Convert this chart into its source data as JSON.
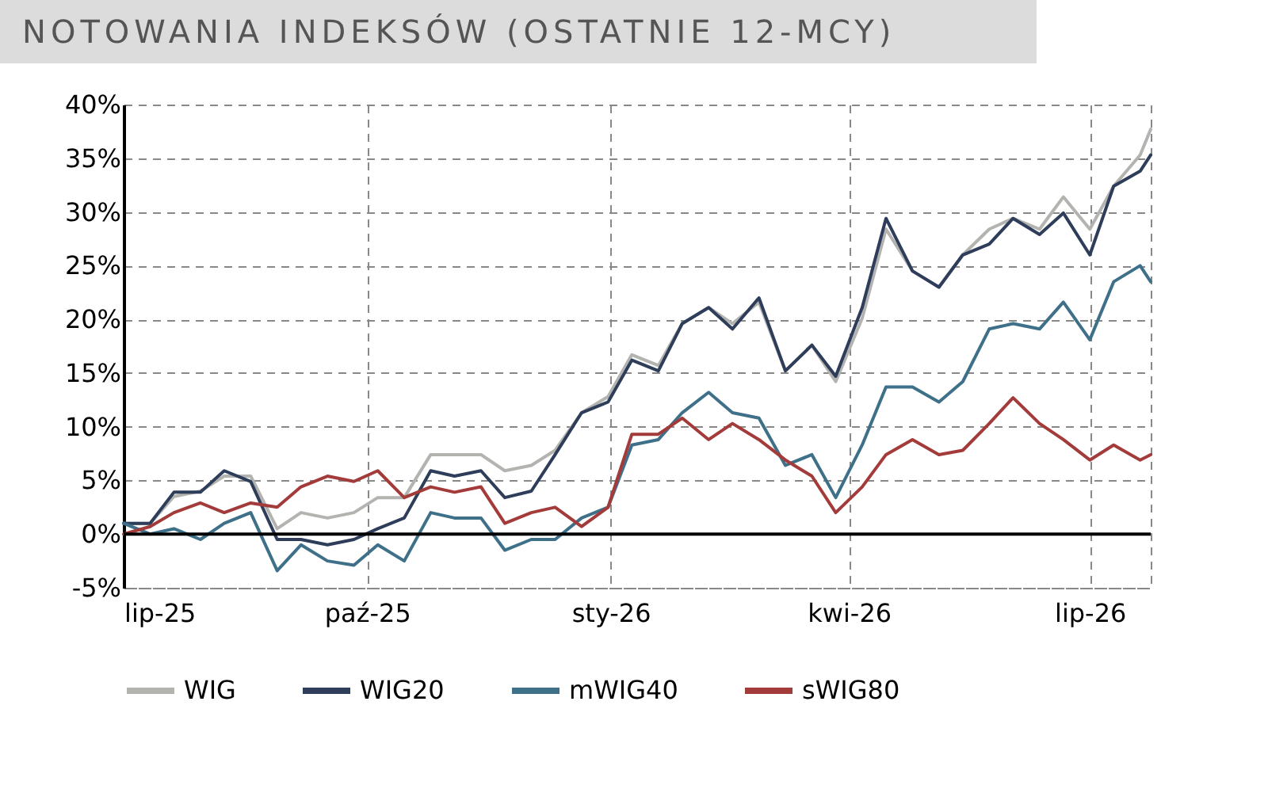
{
  "chart_data": {
    "type": "line",
    "title": "NOTOWANIA INDEKSÓW (OSTATNIE 12-MCY)",
    "x": [
      "2025-07-01",
      "2025-07-11",
      "2025-07-20",
      "2025-07-30",
      "2025-08-08",
      "2025-08-18",
      "2025-08-28",
      "2025-09-06",
      "2025-09-16",
      "2025-09-26",
      "2025-10-05",
      "2025-10-15",
      "2025-10-25",
      "2025-11-03",
      "2025-11-13",
      "2025-11-22",
      "2025-12-02",
      "2025-12-11",
      "2025-12-21",
      "2025-12-31",
      "2026-01-09",
      "2026-01-19",
      "2026-01-28",
      "2026-02-07",
      "2026-02-16",
      "2026-02-26",
      "2026-03-08",
      "2026-03-18",
      "2026-03-27",
      "2026-04-06",
      "2026-04-15",
      "2026-04-25",
      "2026-05-05",
      "2026-05-14",
      "2026-05-24",
      "2026-06-02",
      "2026-06-12",
      "2026-06-21",
      "2026-07-01",
      "2026-07-10",
      "2026-07-20",
      "2026-07-24"
    ],
    "series": [
      {
        "name": "WIG",
        "color": "#b3b3b0",
        "values": [
          1,
          1,
          3.5,
          4,
          5.4,
          5.4,
          0.5,
          2,
          1.5,
          2,
          3.4,
          3.4,
          7.4,
          7.4,
          7.4,
          5.9,
          6.4,
          7.8,
          11.3,
          12.8,
          16.7,
          15.7,
          19.6,
          21.1,
          19.6,
          21.6,
          15.2,
          17.6,
          14.2,
          20.1,
          28.4,
          24.5,
          23,
          26,
          28.4,
          29.4,
          28.4,
          31.4,
          28.4,
          32.4,
          35.3,
          37.7
        ]
      },
      {
        "name": "WIG20",
        "color": "#2e3d5a",
        "values": [
          1,
          1,
          3.9,
          3.9,
          5.9,
          4.9,
          -0.5,
          -0.5,
          -1,
          -0.5,
          0.5,
          1.5,
          5.9,
          5.4,
          5.9,
          3.4,
          4,
          7.4,
          11.3,
          12.3,
          16.2,
          15.2,
          19.6,
          21.1,
          19.1,
          22,
          15.2,
          17.6,
          14.7,
          21.1,
          29.4,
          24.5,
          23,
          26,
          27,
          29.4,
          27.9,
          29.9,
          26,
          32.4,
          33.8,
          35.3
        ]
      },
      {
        "name": "mWIG40",
        "color": "#3f7089",
        "values": [
          1,
          0,
          0.5,
          -0.5,
          1,
          2,
          -3.4,
          -1,
          -2.5,
          -2.9,
          -1,
          -2.5,
          2,
          1.5,
          1.5,
          -1.5,
          -0.5,
          -0.5,
          1.5,
          2.5,
          8.3,
          8.8,
          11.3,
          13.2,
          11.3,
          10.8,
          6.4,
          7.4,
          3.4,
          8.3,
          13.7,
          13.7,
          12.3,
          14.2,
          19.1,
          19.6,
          19.1,
          21.6,
          18.1,
          23.5,
          25,
          23.5
        ]
      },
      {
        "name": "sWIG80",
        "color": "#a33b3b",
        "values": [
          0,
          0.7,
          2,
          2.9,
          2,
          2.9,
          2.5,
          4.4,
          5.4,
          4.9,
          5.9,
          3.4,
          4.4,
          3.9,
          4.4,
          1,
          2,
          2.5,
          0.7,
          2.5,
          9.3,
          9.3,
          10.8,
          8.8,
          10.3,
          8.8,
          6.9,
          5.4,
          2,
          4.4,
          7.4,
          8.8,
          7.4,
          7.8,
          10.3,
          12.7,
          10.3,
          8.8,
          6.9,
          8.3,
          6.9,
          7.4
        ]
      }
    ],
    "xlim": [
      "2025-07-01",
      "2026-07-24"
    ],
    "xticks": [
      {
        "value": "2025-07-01",
        "label": "lip-25"
      },
      {
        "value": "2025-10-01",
        "label": "paź-25"
      },
      {
        "value": "2026-01-01",
        "label": "sty-26"
      },
      {
        "value": "2026-04-01",
        "label": "kwi-26"
      },
      {
        "value": "2026-07-01",
        "label": "lip-26"
      }
    ],
    "ylim": [
      -5,
      40
    ],
    "yticks": [
      {
        "value": -5,
        "label": "-5%"
      },
      {
        "value": 0,
        "label": "0%"
      },
      {
        "value": 5,
        "label": "5%"
      },
      {
        "value": 10,
        "label": "10%"
      },
      {
        "value": 15,
        "label": "15%"
      },
      {
        "value": 20,
        "label": "20%"
      },
      {
        "value": 25,
        "label": "25%"
      },
      {
        "value": 30,
        "label": "30%"
      },
      {
        "value": 35,
        "label": "35%"
      },
      {
        "value": 40,
        "label": "40%"
      }
    ],
    "ref_lines": [
      {
        "axis": "y",
        "value": 0,
        "color": "#000000"
      }
    ],
    "grid": true,
    "legend": "bottom"
  }
}
